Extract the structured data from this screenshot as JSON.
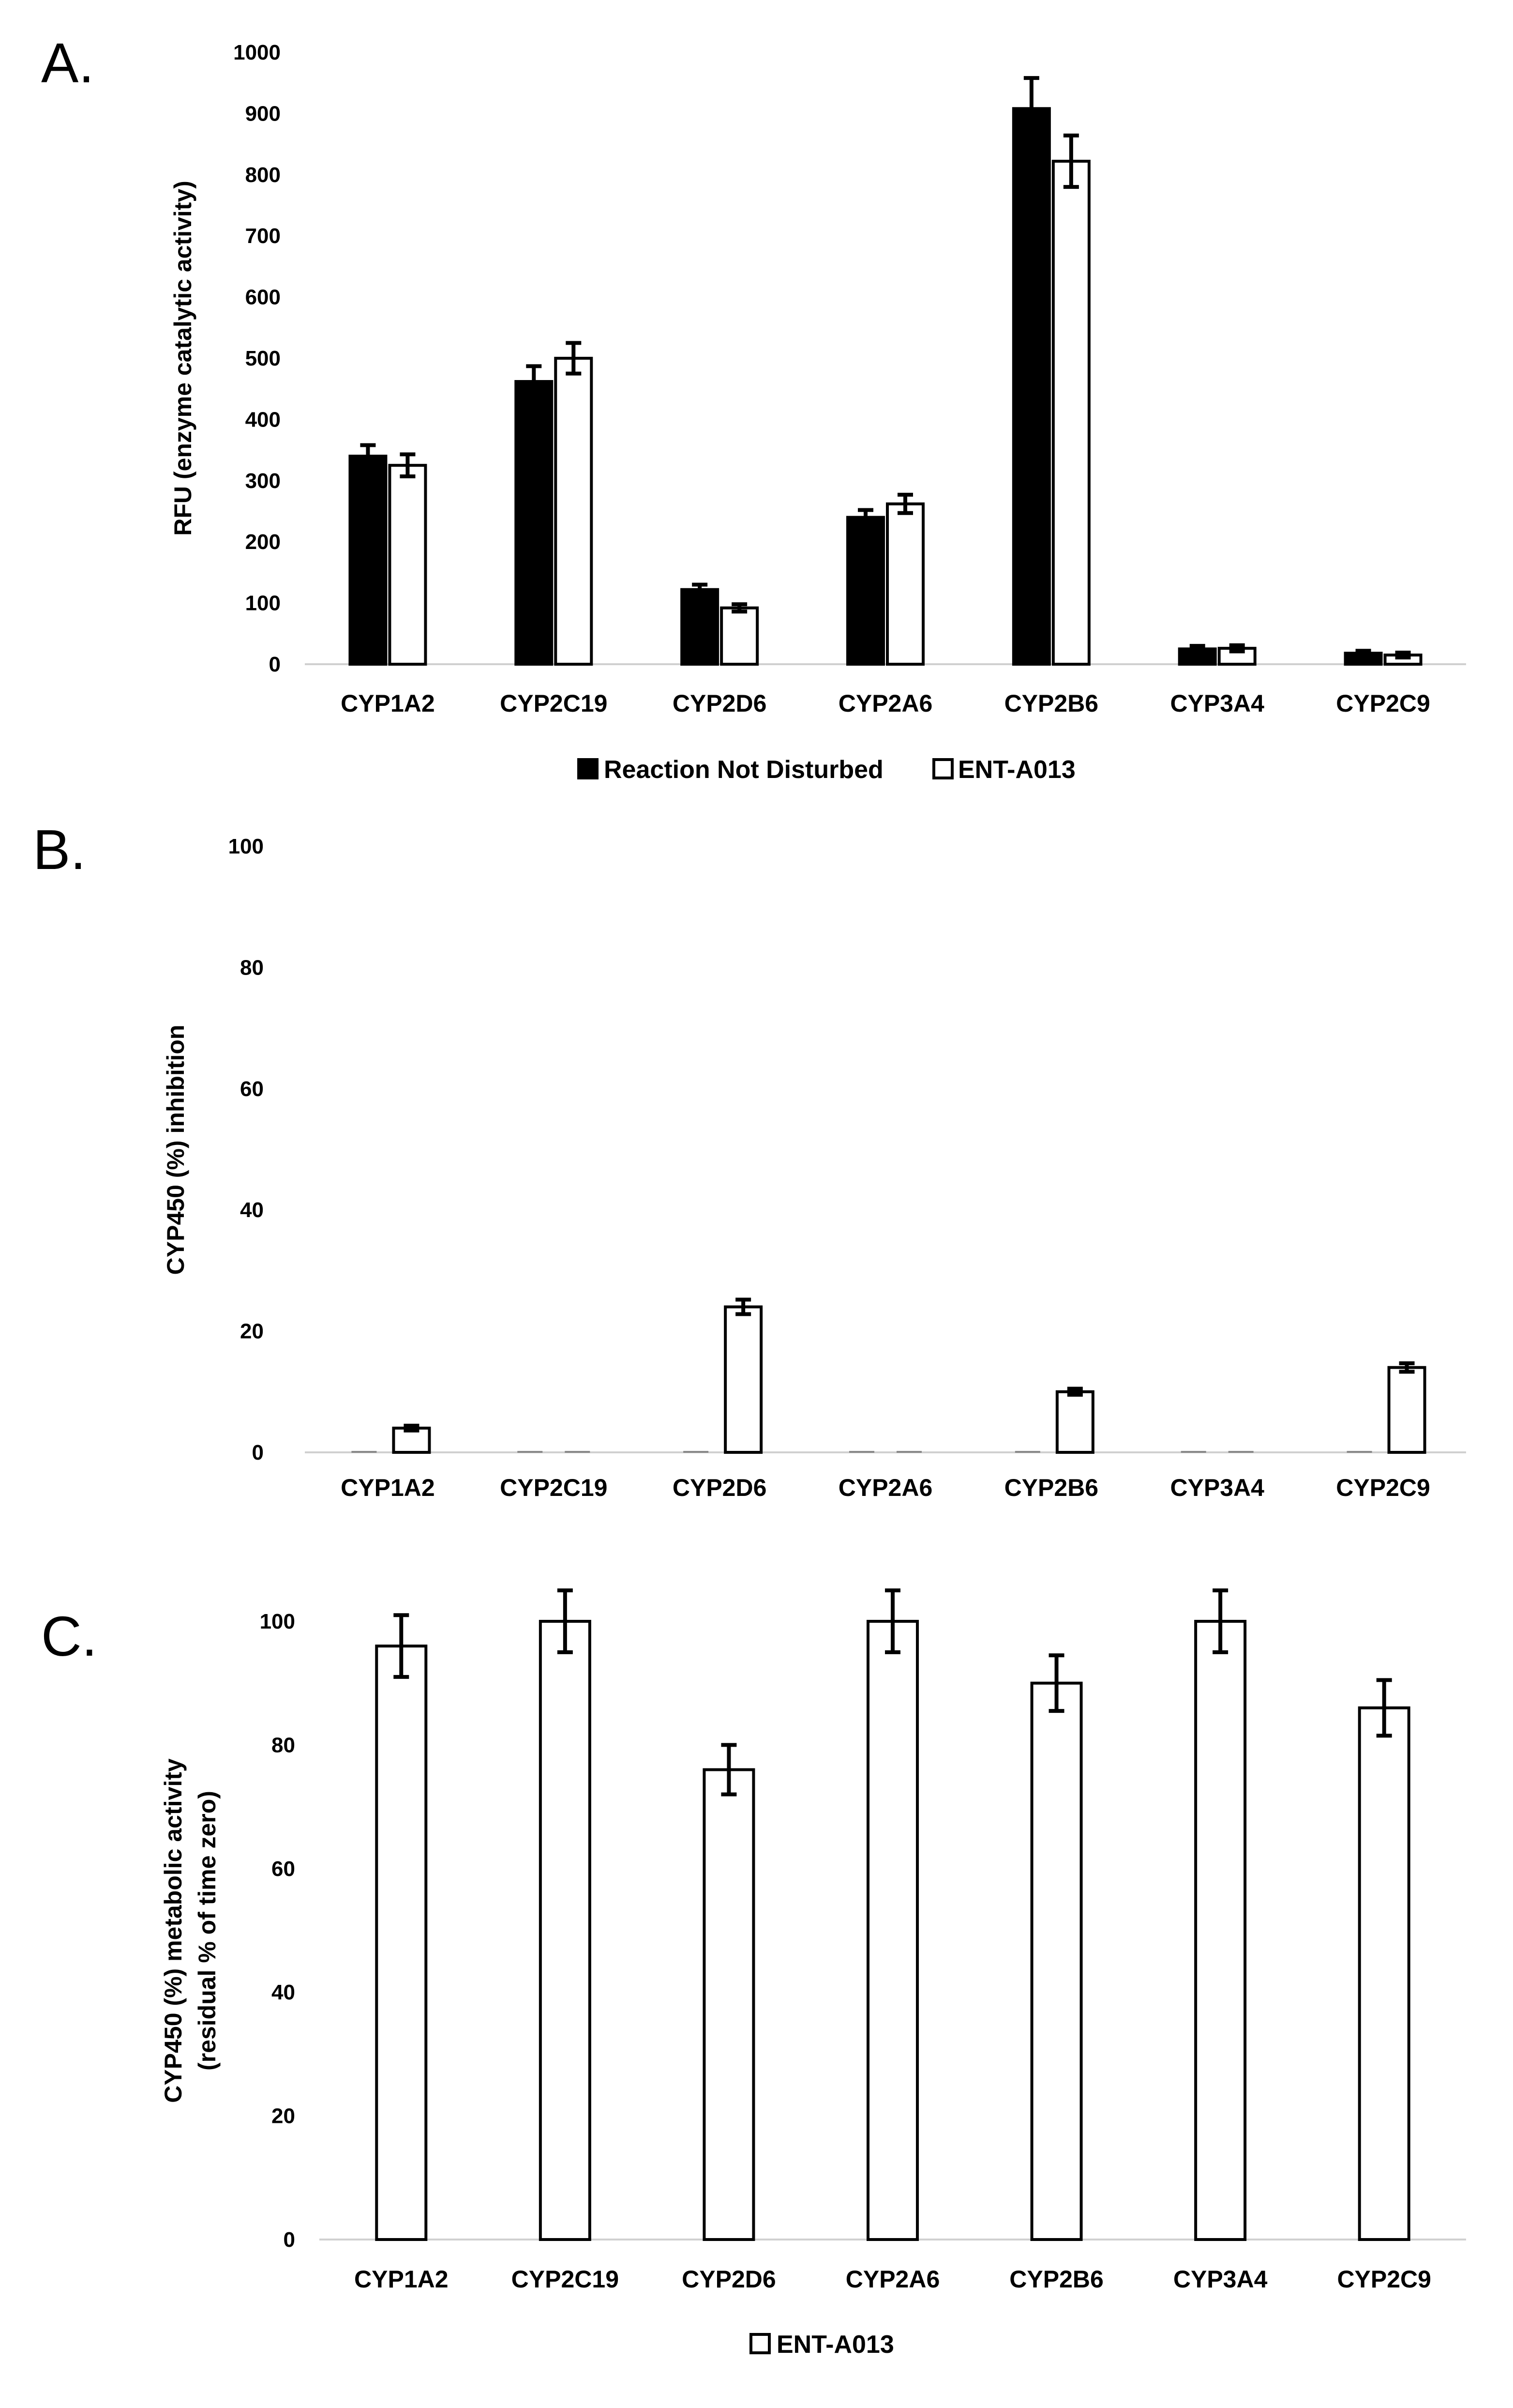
{
  "chart_data": [
    {
      "panel": "A.",
      "type": "bar",
      "categories": [
        "CYP1A2",
        "CYP2C19",
        "CYP2D6",
        "CYP2A6",
        "CYP2B6",
        "CYP3A4",
        "CYP2C9"
      ],
      "series": [
        {
          "name": "Reaction Not Disturbed",
          "style": "solid",
          "values": [
            340,
            462,
            122,
            240,
            908,
            25,
            18
          ],
          "errors": [
            18,
            25,
            8,
            12,
            50,
            5,
            4
          ]
        },
        {
          "name": "ENT-A013",
          "style": "hollow",
          "values": [
            325,
            500,
            92,
            262,
            822,
            26,
            15
          ],
          "errors": [
            18,
            25,
            6,
            15,
            42,
            5,
            4
          ]
        }
      ],
      "yticks": [
        "0",
        "100",
        "200",
        "300",
        "400",
        "500",
        "600",
        "700",
        "800",
        "900",
        "1000"
      ],
      "ylim": [
        0,
        1000
      ],
      "ylabel": "RFU (enzyme catalytic activity)",
      "xlabel": "",
      "legend_position": "bottom"
    },
    {
      "panel": "B.",
      "type": "bar",
      "categories": [
        "CYP1A2",
        "CYP2C19",
        "CYP2D6",
        "CYP2A6",
        "CYP2B6",
        "CYP3A4",
        "CYP2C9"
      ],
      "series": [
        {
          "name": "Reaction Not Disturbed",
          "style": "solid",
          "values": [
            0,
            0,
            0,
            0,
            0,
            0,
            0
          ],
          "errors": [
            0,
            0,
            0,
            0,
            0,
            0,
            0
          ]
        },
        {
          "name": "ENT-A013",
          "style": "hollow",
          "values": [
            4,
            0,
            24,
            0,
            10,
            0,
            14
          ],
          "errors": [
            0.4,
            0,
            1.2,
            0,
            0.5,
            0,
            0.7
          ]
        }
      ],
      "yticks": [
        "0",
        "20",
        "40",
        "60",
        "80",
        "100"
      ],
      "ylim": [
        0,
        100
      ],
      "ylabel": "CYP450 (%) inhibition",
      "xlabel": "",
      "legend_position": "none"
    },
    {
      "panel": "C.",
      "type": "bar",
      "categories": [
        "CYP1A2",
        "CYP2C19",
        "CYP2D6",
        "CYP2A6",
        "CYP2B6",
        "CYP3A4",
        "CYP2C9"
      ],
      "series": [
        {
          "name": "ENT-A013",
          "style": "hollow",
          "values": [
            96,
            100,
            76,
            100,
            90,
            100,
            86
          ],
          "errors": [
            5,
            5,
            4,
            5,
            4.5,
            5,
            4.5
          ]
        }
      ],
      "yticks": [
        "0",
        "20",
        "40",
        "60",
        "80",
        "100"
      ],
      "ylim": [
        0,
        100
      ],
      "ylabel": "CYP450 (%) metabolic activity",
      "ylabel2": "(residual % of time zero)",
      "xlabel": "",
      "legend_position": "bottom"
    }
  ]
}
